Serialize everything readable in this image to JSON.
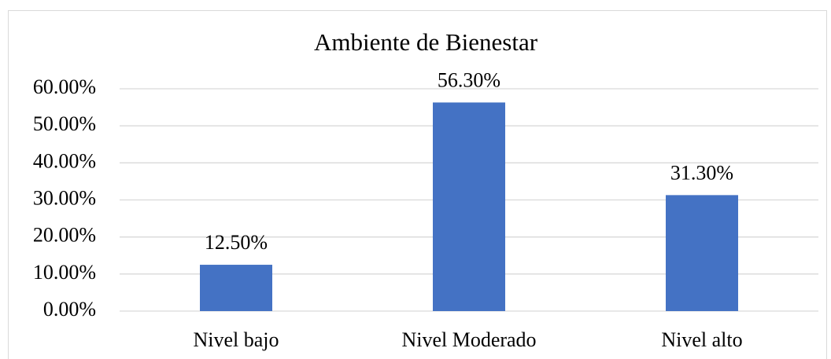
{
  "chart_data": {
    "type": "bar",
    "title": "Ambiente de Bienestar",
    "categories": [
      "Nivel bajo",
      "Nivel Moderado",
      "Nivel alto"
    ],
    "values": [
      12.5,
      56.3,
      31.3
    ],
    "value_labels": [
      "12.50%",
      "56.30%",
      "31.30%"
    ],
    "color": "#4472c4",
    "ylim": [
      0,
      60
    ],
    "yticks": [
      {
        "value": 0,
        "label": "0.00%"
      },
      {
        "value": 10,
        "label": "10.00%"
      },
      {
        "value": 20,
        "label": "20.00%"
      },
      {
        "value": 30,
        "label": "30.00%"
      },
      {
        "value": 40,
        "label": "40.00%"
      },
      {
        "value": 50,
        "label": "50.00%"
      },
      {
        "value": 60,
        "label": "60.00%"
      }
    ],
    "grid": true
  }
}
